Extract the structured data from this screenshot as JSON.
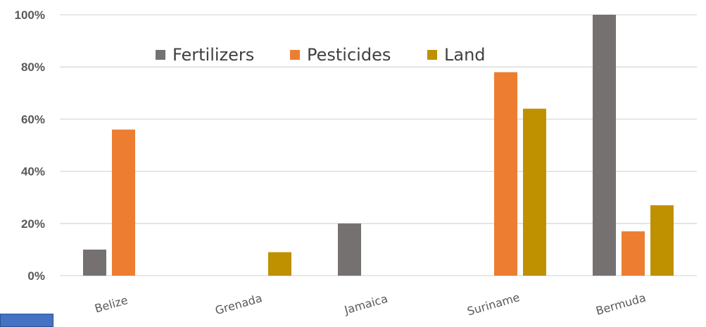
{
  "chart_data": {
    "type": "bar",
    "categories": [
      "Belize",
      "Grenada",
      "Jamaica",
      "Suriname",
      "Bermuda"
    ],
    "series": [
      {
        "name": "Fertilizers",
        "color": "#767171",
        "values": [
          10,
          0,
          20,
          0,
          100
        ]
      },
      {
        "name": "Pesticides",
        "color": "#ed7d31",
        "values": [
          56,
          0,
          0,
          78,
          17
        ]
      },
      {
        "name": "Land",
        "color": "#bf9000",
        "values": [
          0,
          9,
          0,
          64,
          27
        ]
      }
    ],
    "ylim": [
      0,
      100
    ],
    "yticks": [
      "0%",
      "20%",
      "40%",
      "60%",
      "80%",
      "100%"
    ],
    "ytick_values": [
      0,
      20,
      40,
      60,
      80,
      100
    ],
    "grid": true,
    "legend_position": "top"
  },
  "colors": {
    "gridline": "#d9d9d9",
    "tab": "#4472c4"
  }
}
